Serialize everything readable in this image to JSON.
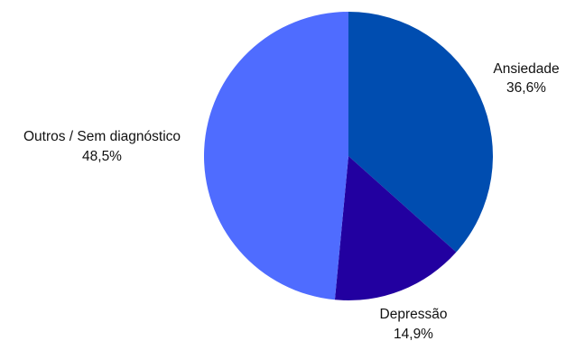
{
  "chart_data": {
    "type": "pie",
    "slices": [
      {
        "label": "Ansiedade",
        "pct_label": "36,6%",
        "value": 36.6,
        "color": "#004DB0"
      },
      {
        "label": "Depressão",
        "pct_label": "14,9%",
        "value": 14.9,
        "color": "#2200A0"
      },
      {
        "label": "Outros / Sem diagnóstico",
        "pct_label": "48,5%",
        "value": 48.5,
        "color": "#4F6CFF"
      }
    ],
    "start_angle_deg": 0,
    "direction": "clockwise",
    "legend": "none"
  }
}
